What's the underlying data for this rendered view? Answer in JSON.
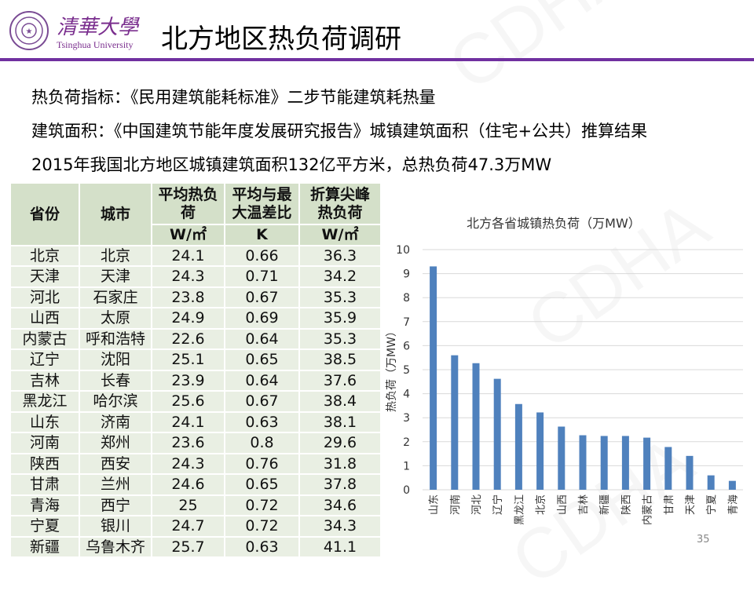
{
  "header": {
    "university_cn": "清華大學",
    "university_en": "Tsinghua University",
    "title": "北方地区热负荷调研"
  },
  "watermark": "CDHA",
  "lines": [
    "热负荷指标：《民用建筑能耗标准》二步节能建筑耗热量",
    "建筑面积：《中国建筑节能年度发展研究报告》城镇建筑面积（住宅+公共）推算结果",
    "2015年我国北方地区城镇建筑面积132亿平方米，总热负荷47.3万MW"
  ],
  "table": {
    "headers": [
      "省份",
      "城市",
      "平均热负荷",
      "平均与最大温差比",
      "折算尖峰热负荷"
    ],
    "units": [
      "W/㎡",
      "K",
      "W/㎡"
    ],
    "rows": [
      [
        "北京",
        "北京",
        "24.1",
        "0.66",
        "36.3"
      ],
      [
        "天津",
        "天津",
        "24.3",
        "0.71",
        "34.2"
      ],
      [
        "河北",
        "石家庄",
        "23.8",
        "0.67",
        "35.3"
      ],
      [
        "山西",
        "太原",
        "24.9",
        "0.69",
        "35.9"
      ],
      [
        "内蒙古",
        "呼和浩特",
        "22.6",
        "0.64",
        "35.3"
      ],
      [
        "辽宁",
        "沈阳",
        "25.1",
        "0.65",
        "38.5"
      ],
      [
        "吉林",
        "长春",
        "23.9",
        "0.64",
        "37.6"
      ],
      [
        "黑龙江",
        "哈尔滨",
        "25.6",
        "0.67",
        "38.4"
      ],
      [
        "山东",
        "济南",
        "24.1",
        "0.63",
        "38.1"
      ],
      [
        "河南",
        "郑州",
        "23.6",
        "0.8",
        "29.6"
      ],
      [
        "陕西",
        "西安",
        "24.3",
        "0.76",
        "31.8"
      ],
      [
        "甘肃",
        "兰州",
        "24.6",
        "0.65",
        "37.8"
      ],
      [
        "青海",
        "西宁",
        "25",
        "0.72",
        "34.6"
      ],
      [
        "宁夏",
        "银川",
        "24.7",
        "0.72",
        "34.3"
      ],
      [
        "新疆",
        "乌鲁木齐",
        "25.7",
        "0.63",
        "41.1"
      ]
    ]
  },
  "chart_data": {
    "type": "bar",
    "title": "北方各省城镇热负荷（万MW）",
    "xlabel": "",
    "ylabel": "热负荷（万MW）",
    "ylim": [
      0,
      10
    ],
    "yticks": [
      "0",
      "1",
      "2",
      "3",
      "4",
      "5",
      "6",
      "7",
      "8",
      "9",
      "10"
    ],
    "grid": true,
    "color": "#4f81bd",
    "categories": [
      "山东",
      "河南",
      "河北",
      "辽宁",
      "黑龙江",
      "北京",
      "山西",
      "吉林",
      "新疆",
      "陕西",
      "内蒙古",
      "甘肃",
      "天津",
      "宁夏",
      "青海"
    ],
    "values": [
      9.3,
      5.6,
      5.27,
      4.62,
      3.57,
      3.22,
      2.63,
      2.27,
      2.24,
      2.24,
      2.17,
      1.78,
      1.41,
      0.6,
      0.37
    ]
  },
  "page_number": "35"
}
